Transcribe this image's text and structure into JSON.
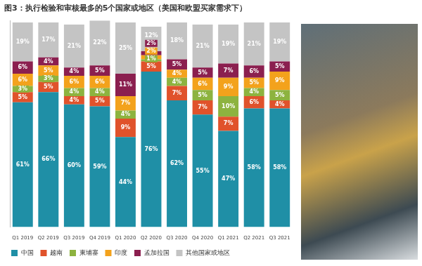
{
  "chart_data": {
    "type": "bar",
    "title": "图3：执行检验和审核最多的5个国家或地区（美国和欧盟买家需求下）",
    "categories": [
      "Q1 2019",
      "Q2 2019",
      "Q3 2019",
      "Q4 2019",
      "Q1 2020",
      "Q2 2020",
      "Q3 2020",
      "Q4 2020",
      "Q1 2021",
      "Q2 2021",
      "Q3 2021"
    ],
    "series": [
      {
        "name": "中国",
        "color": "#1f8fa6",
        "values": [
          61,
          66,
          60,
          59,
          44,
          76,
          62,
          55,
          47,
          58,
          58
        ],
        "value_labels": [
          "61%",
          "66%",
          "60%",
          "59%",
          "44%",
          "76%",
          "62%",
          "55%",
          "47%",
          "58%",
          "58%"
        ]
      },
      {
        "name": "越南",
        "color": "#e0522b",
        "values": [
          5,
          5,
          4,
          5,
          9,
          5,
          7,
          7,
          7,
          6,
          4
        ],
        "value_labels": [
          "5%",
          "5%",
          "4%",
          "5%",
          "9%",
          "5%",
          "7%",
          "7%",
          "7%",
          "6%",
          "4%"
        ]
      },
      {
        "name": "柬埔寨",
        "color": "#8db33f",
        "values": [
          3,
          3,
          4,
          4,
          4,
          1,
          4,
          5,
          10,
          4,
          5
        ],
        "value_labels": [
          "3%",
          "3%",
          "4%",
          "4%",
          "4%",
          "1%",
          "4%",
          "5%",
          "10%",
          "4%",
          "5%"
        ]
      },
      {
        "name": "印度",
        "color": "#f3a21c",
        "values": [
          6,
          5,
          6,
          6,
          7,
          2,
          4,
          6,
          9,
          5,
          9
        ],
        "value_labels": [
          "6%",
          "5%",
          "6%",
          "6%",
          "7%",
          "2%",
          "4%",
          "6%",
          "9%",
          "5%",
          "9%"
        ]
      },
      {
        "name": "孟加拉国",
        "color": "#8b1f4f",
        "values": [
          6,
          4,
          4,
          5,
          11,
          2,
          5,
          5,
          7,
          6,
          5
        ],
        "value_labels": [
          "6%",
          "4%",
          "4%",
          "5%",
          "11%",
          "2%",
          "5%",
          "5%",
          "7%",
          "6%",
          "5%"
        ]
      },
      {
        "name": "其他国家或地区",
        "color": "#c4c4c4",
        "values": [
          19,
          17,
          21,
          22,
          25,
          12,
          18,
          21,
          19,
          21,
          19
        ],
        "value_labels": [
          "19%",
          "17%",
          "21%",
          "22%",
          "25%",
          "12%",
          "18%",
          "21%",
          "19%",
          "21%",
          "19%"
        ]
      }
    ],
    "stacked": true,
    "ylim": [
      0,
      101
    ],
    "grid": false,
    "legend": "bottom",
    "data_labels": true,
    "tick_labels": "x"
  }
}
